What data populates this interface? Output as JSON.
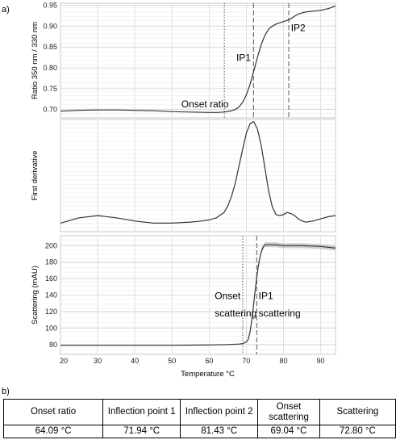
{
  "figure": {
    "panel_a_label": "a)",
    "panel_b_label": "b)"
  },
  "chart_data": [
    {
      "type": "line",
      "ylabel": "Ratio 350 nm / 330 nm",
      "xlim": [
        20,
        94
      ],
      "ylim": [
        0.68,
        0.955
      ],
      "yticks": [
        0.7,
        0.75,
        0.8,
        0.85,
        0.9,
        0.95
      ],
      "grid": true,
      "series": [
        {
          "x": [
            20,
            25,
            30,
            35,
            40,
            45,
            50,
            55,
            60,
            62,
            64,
            65,
            66,
            67,
            68,
            69,
            70,
            71,
            72,
            73,
            74,
            75,
            76,
            77,
            78,
            79,
            80,
            81,
            82,
            83,
            84,
            85,
            86,
            88,
            90,
            92,
            94
          ],
          "y": [
            0.696,
            0.698,
            0.699,
            0.699,
            0.698,
            0.697,
            0.695,
            0.694,
            0.693,
            0.693,
            0.694,
            0.695,
            0.697,
            0.7,
            0.706,
            0.717,
            0.735,
            0.76,
            0.792,
            0.825,
            0.855,
            0.878,
            0.893,
            0.9,
            0.905,
            0.908,
            0.911,
            0.914,
            0.918,
            0.924,
            0.929,
            0.932,
            0.934,
            0.936,
            0.938,
            0.942,
            0.948
          ]
        }
      ],
      "vlines": [
        {
          "x": 64.09,
          "style": "dotted"
        },
        {
          "x": 71.94,
          "style": "dashed"
        },
        {
          "x": 81.43,
          "style": "dashed"
        }
      ],
      "annotations": [
        {
          "text": "Onset ratio",
          "x": 52.5,
          "y": 0.705
        },
        {
          "text": "IP1",
          "x": 67.3,
          "y": 0.817
        },
        {
          "text": "IP2",
          "x": 82.0,
          "y": 0.888
        }
      ]
    },
    {
      "type": "line",
      "ylabel": "First derivative",
      "xlim": [
        20,
        94
      ],
      "ylim": [
        -0.05,
        1.0
      ],
      "grid": true,
      "series": [
        {
          "x": [
            20,
            25,
            30,
            35,
            40,
            45,
            50,
            55,
            58,
            60,
            62,
            64,
            65,
            66,
            67,
            68,
            69,
            70,
            71,
            72,
            73,
            74,
            75,
            76,
            77,
            78,
            79,
            80,
            81,
            82,
            83,
            84,
            85,
            86,
            88,
            90,
            92,
            94
          ],
          "y": [
            0.03,
            0.08,
            0.1,
            0.08,
            0.05,
            0.03,
            0.03,
            0.04,
            0.05,
            0.06,
            0.08,
            0.13,
            0.19,
            0.28,
            0.4,
            0.56,
            0.72,
            0.87,
            0.96,
            0.98,
            0.91,
            0.76,
            0.55,
            0.33,
            0.18,
            0.11,
            0.1,
            0.11,
            0.13,
            0.12,
            0.1,
            0.07,
            0.05,
            0.04,
            0.05,
            0.07,
            0.09,
            0.1
          ]
        }
      ]
    },
    {
      "type": "line",
      "xlabel": "Temperature °C",
      "ylabel": "Scattering (mAU)",
      "xlim": [
        20,
        94
      ],
      "ylim": [
        68,
        212
      ],
      "yticks": [
        80,
        100,
        120,
        140,
        160,
        180,
        200
      ],
      "xticks": [
        20,
        30,
        40,
        50,
        60,
        70,
        80,
        90
      ],
      "grid": true,
      "series": [
        {
          "x": [
            20,
            30,
            40,
            50,
            60,
            65,
            68,
            69,
            70,
            70.5,
            71,
            71.5,
            72,
            72.5,
            73,
            73.5,
            74,
            74.5,
            75,
            76,
            78,
            80,
            85,
            90,
            94
          ],
          "y": [
            79,
            79,
            79,
            79,
            79.5,
            80,
            80.5,
            81,
            83,
            86,
            95,
            110,
            130,
            150,
            168,
            182,
            192,
            198,
            201,
            201,
            201,
            200,
            200,
            199,
            197
          ]
        }
      ],
      "vlines": [
        {
          "x": 69.04,
          "style": "dotted"
        },
        {
          "x": 72.8,
          "style": "dashed"
        }
      ],
      "annotations": [
        {
          "text": "Onset",
          "x": 61.5,
          "y": 135
        },
        {
          "text": "scattering",
          "x": 61.5,
          "y": 114
        },
        {
          "text": "IP1",
          "x": 73.3,
          "y": 135
        },
        {
          "text": "scattering",
          "x": 73.3,
          "y": 114
        }
      ]
    }
  ],
  "table": {
    "headers": [
      "Onset ratio",
      "Inflection point 1",
      "Inflection point 2",
      "Onset scattering",
      "Scattering"
    ],
    "values": [
      "64.09 °C",
      "71.94 °C",
      "81.43 °C",
      "69.04 °C",
      "72.80 °C"
    ]
  }
}
